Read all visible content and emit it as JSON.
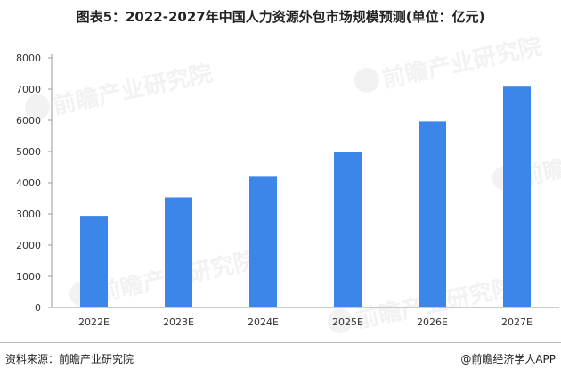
{
  "header": {
    "title": "图表5：2022-2027年中国人力资源外包市场规模预测(单位：亿元)"
  },
  "chart_data": {
    "type": "bar",
    "categories": [
      "2022E",
      "2023E",
      "2024E",
      "2025E",
      "2026E",
      "2027E"
    ],
    "series": [
      {
        "values": [
          2940,
          3530,
          4190,
          5000,
          5960,
          7080
        ]
      }
    ],
    "yticks": [
      "0",
      "1000",
      "2000",
      "3000",
      "4000",
      "5000",
      "6000",
      "7000",
      "8000"
    ],
    "ylim": [
      0,
      8000
    ],
    "grid": false,
    "legend": "none",
    "bar_color": "#3b86e8"
  },
  "footer": {
    "source": "资料来源：前瞻产业研究院",
    "credit": "@前瞻经济学人APP"
  },
  "watermark": {
    "text": "前瞻产业研究院"
  }
}
